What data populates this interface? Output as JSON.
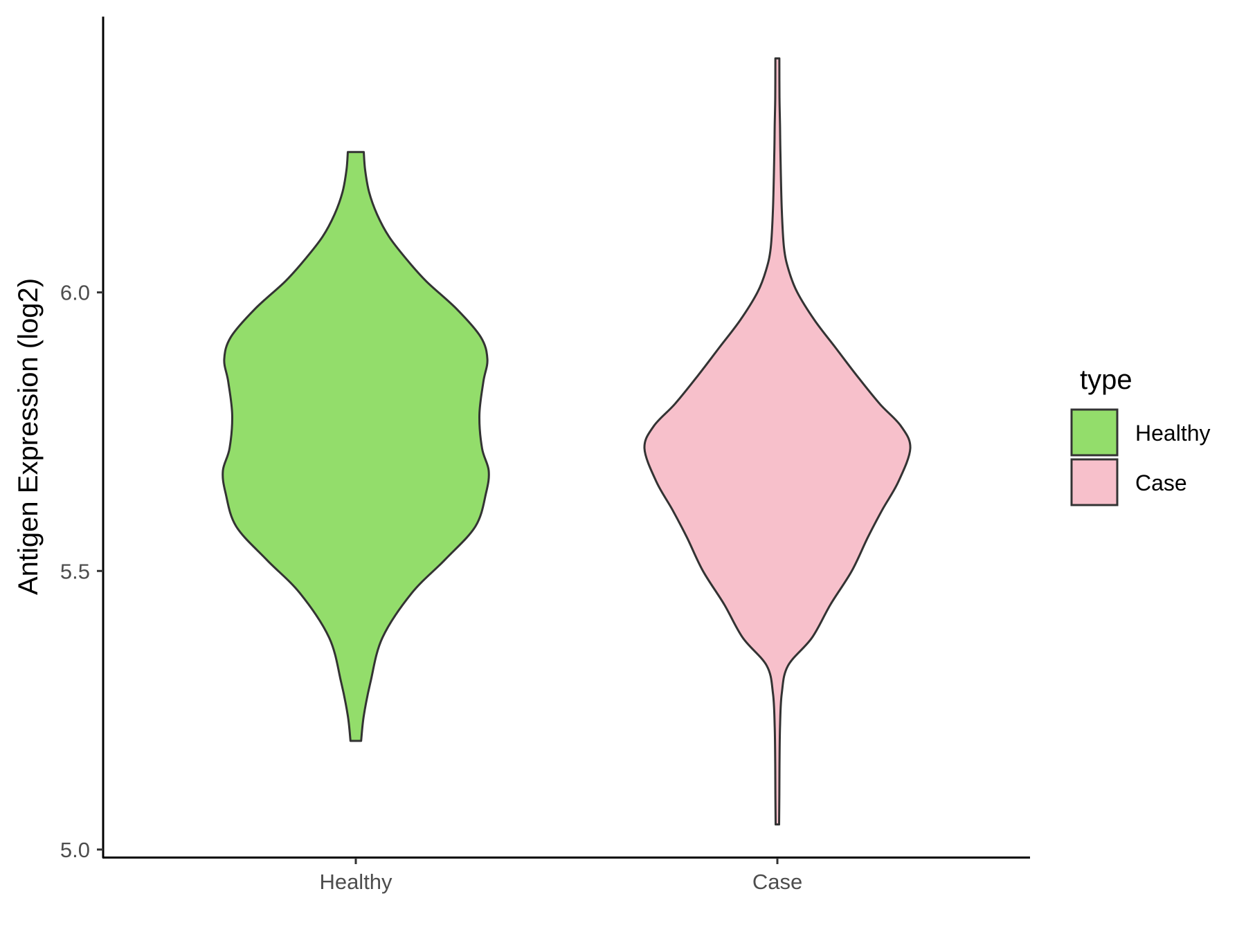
{
  "chart_data": {
    "type": "violin",
    "title": "",
    "xlabel": "",
    "ylabel": "Antigen Expression (log2)",
    "categories": [
      "Healthy",
      "Case"
    ],
    "ylim": [
      4.985,
      6.495
    ],
    "yticks": [
      5.0,
      5.5,
      6.0
    ],
    "ytick_labels": [
      "5.0",
      "5.5",
      "6.0"
    ],
    "grid": false,
    "legend": {
      "title": "type",
      "position": "right",
      "entries": [
        {
          "label": "Healthy",
          "color": "#93DD6B"
        },
        {
          "label": "Case",
          "color": "#F7C0CB"
        }
      ]
    },
    "series": [
      {
        "category": "Healthy",
        "color": "#93DD6B",
        "y_min": 5.195,
        "y_max": 6.252,
        "density": [
          [
            5.195,
            0.04
          ],
          [
            5.24,
            0.06
          ],
          [
            5.3,
            0.11
          ],
          [
            5.38,
            0.2
          ],
          [
            5.46,
            0.42
          ],
          [
            5.52,
            0.67
          ],
          [
            5.58,
            0.9
          ],
          [
            5.64,
            0.98
          ],
          [
            5.68,
            1.0
          ],
          [
            5.72,
            0.95
          ],
          [
            5.78,
            0.93
          ],
          [
            5.84,
            0.96
          ],
          [
            5.88,
            0.99
          ],
          [
            5.92,
            0.94
          ],
          [
            5.97,
            0.76
          ],
          [
            6.02,
            0.53
          ],
          [
            6.06,
            0.38
          ],
          [
            6.1,
            0.25
          ],
          [
            6.14,
            0.16
          ],
          [
            6.18,
            0.1
          ],
          [
            6.22,
            0.07
          ],
          [
            6.252,
            0.06
          ]
        ]
      },
      {
        "category": "Case",
        "color": "#F7C0CB",
        "y_min": 5.045,
        "y_max": 6.42,
        "density": [
          [
            5.045,
            0.013
          ],
          [
            5.1,
            0.015
          ],
          [
            5.15,
            0.016
          ],
          [
            5.22,
            0.02
          ],
          [
            5.28,
            0.033
          ],
          [
            5.33,
            0.08
          ],
          [
            5.38,
            0.26
          ],
          [
            5.44,
            0.4
          ],
          [
            5.5,
            0.56
          ],
          [
            5.56,
            0.68
          ],
          [
            5.61,
            0.79
          ],
          [
            5.66,
            0.91
          ],
          [
            5.72,
            1.0
          ],
          [
            5.76,
            0.93
          ],
          [
            5.8,
            0.77
          ],
          [
            5.85,
            0.6
          ],
          [
            5.9,
            0.44
          ],
          [
            5.95,
            0.28
          ],
          [
            6.0,
            0.15
          ],
          [
            6.04,
            0.085
          ],
          [
            6.08,
            0.05
          ],
          [
            6.15,
            0.033
          ],
          [
            6.25,
            0.023
          ],
          [
            6.3,
            0.02
          ],
          [
            6.35,
            0.016
          ],
          [
            6.42,
            0.015
          ]
        ]
      }
    ]
  }
}
